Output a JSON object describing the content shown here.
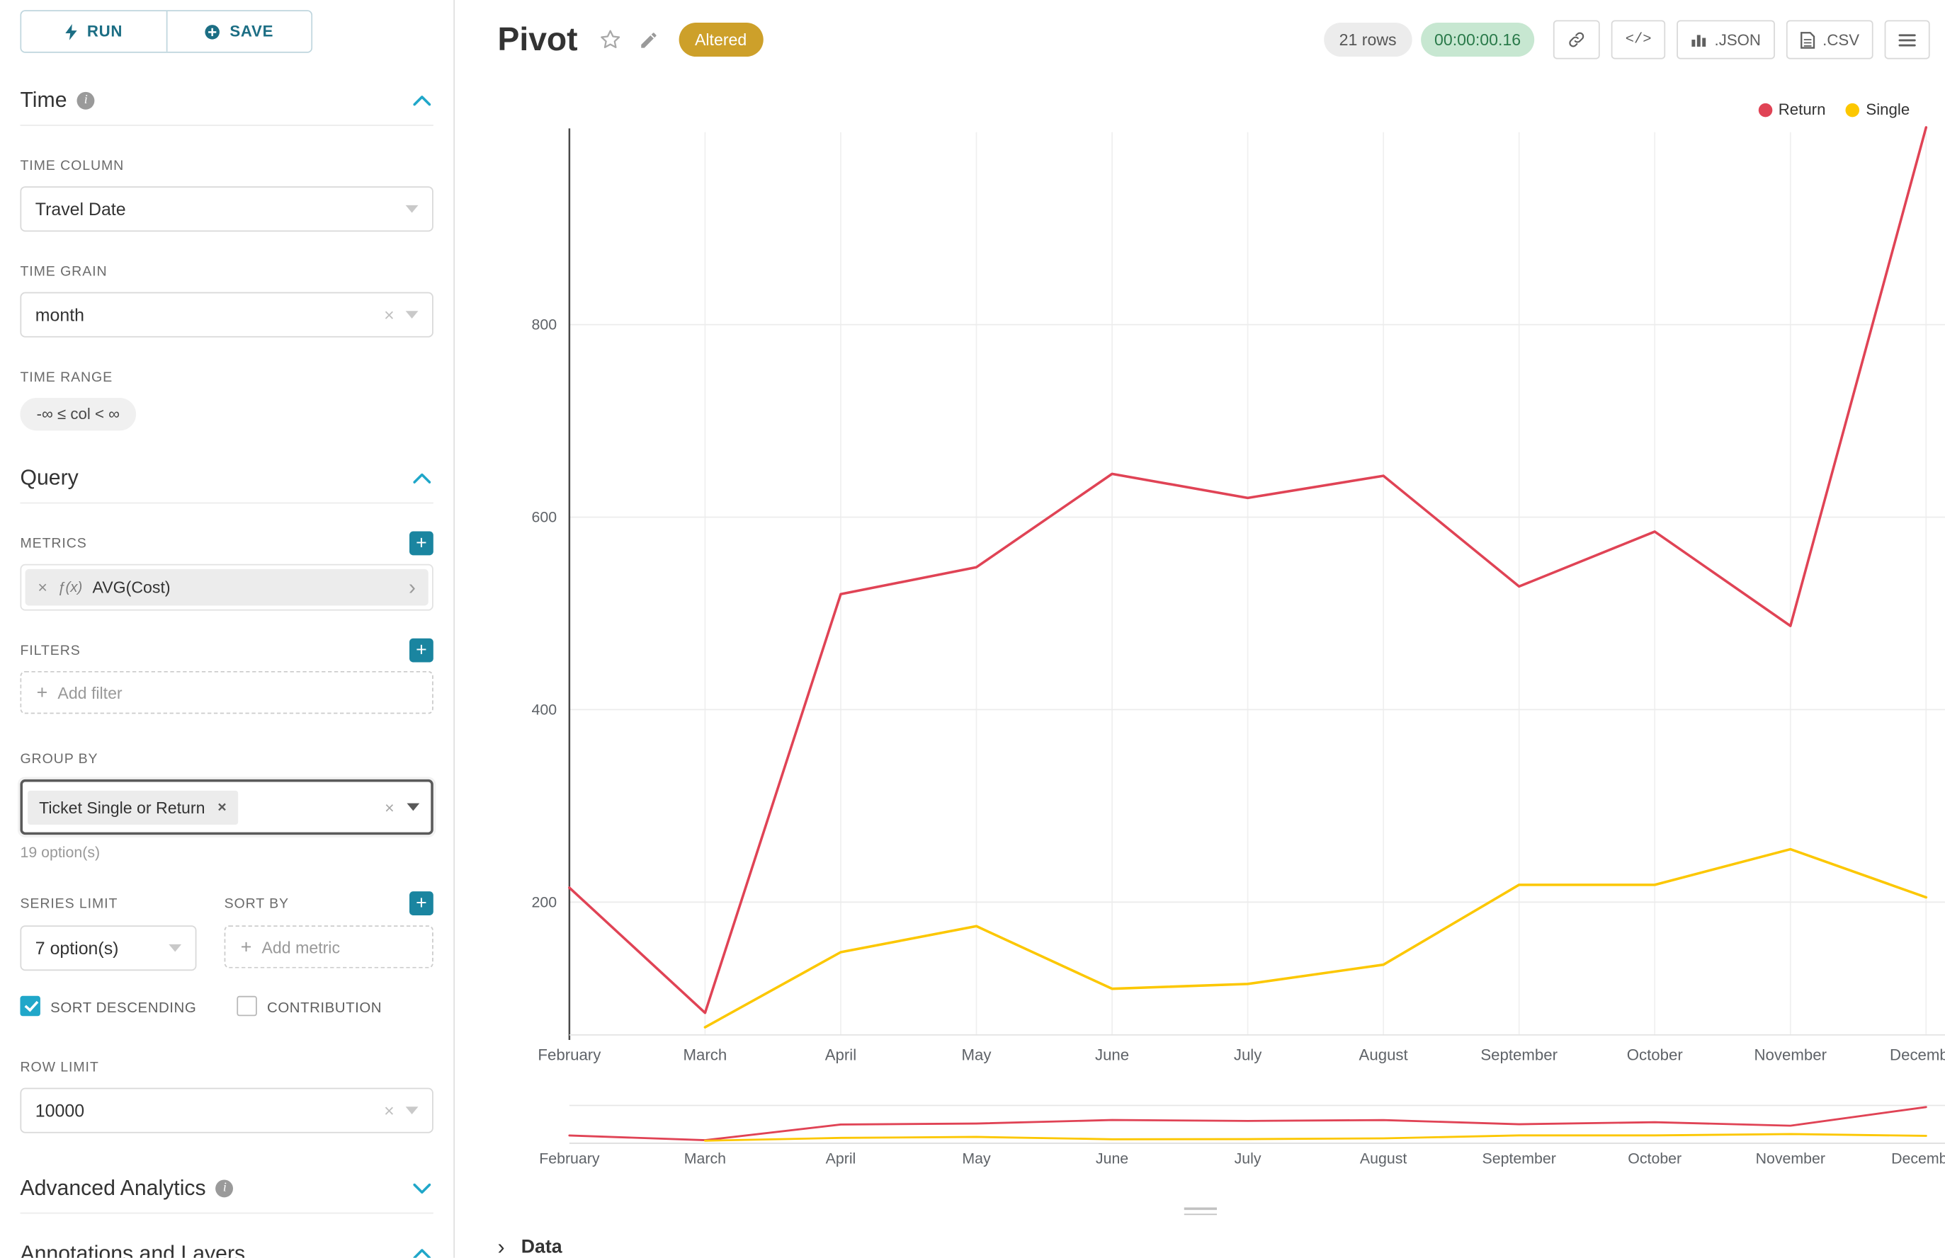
{
  "toolbar": {
    "run": "RUN",
    "save": "SAVE"
  },
  "colors": {
    "accent": "#20a7c9",
    "plus_button": "#1a85a0",
    "altered_badge": "#cda02a",
    "timer_bg": "#c7e7d1",
    "timer_text": "#2a7a4a"
  },
  "panel": {
    "time": {
      "title": "Time",
      "time_column": {
        "label": "TIME COLUMN",
        "value": "Travel Date"
      },
      "time_grain": {
        "label": "TIME GRAIN",
        "value": "month"
      },
      "time_range": {
        "label": "TIME RANGE",
        "value": "-∞ ≤ col < ∞"
      }
    },
    "query": {
      "title": "Query",
      "metrics": {
        "label": "METRICS",
        "fn": "ƒ(x)",
        "value": "AVG(Cost)"
      },
      "filters": {
        "label": "FILTERS",
        "placeholder": "Add filter"
      },
      "group_by": {
        "label": "GROUP BY",
        "chip": "Ticket Single or Return",
        "hint": "19 option(s)"
      },
      "series_limit": {
        "label": "SERIES LIMIT",
        "value": "7 option(s)"
      },
      "sort_by": {
        "label": "SORT BY",
        "placeholder": "Add metric"
      },
      "sort_descending": {
        "label": "SORT DESCENDING",
        "checked": true
      },
      "contribution": {
        "label": "CONTRIBUTION",
        "checked": false
      },
      "row_limit": {
        "label": "ROW LIMIT",
        "value": "10000"
      }
    },
    "advanced": {
      "title": "Advanced Analytics"
    },
    "annotations": {
      "title": "Annotations and Layers"
    }
  },
  "header": {
    "title": "Pivot",
    "badge": "Altered",
    "rows": "21 rows",
    "timer": "00:00:00.16",
    "buttons": {
      "code": "</>",
      "json": ".JSON",
      "csv": ".CSV"
    }
  },
  "footer": {
    "data_label": "Data"
  },
  "chart_data": {
    "type": "line",
    "title": "",
    "xlabel": "",
    "ylabel": "",
    "categories": [
      "February",
      "March",
      "April",
      "May",
      "June",
      "July",
      "August",
      "September",
      "October",
      "November",
      "December"
    ],
    "series": [
      {
        "name": "Return",
        "color": "#E04355",
        "values": [
          215,
          85,
          520,
          548,
          645,
          620,
          643,
          528,
          585,
          487,
          1005
        ]
      },
      {
        "name": "Single",
        "color": "#FCC700",
        "values": [
          null,
          70,
          148,
          175,
          110,
          115,
          135,
          218,
          218,
          255,
          205
        ]
      }
    ],
    "ylim": [
      0,
      1000
    ],
    "yticks": [
      200,
      400,
      600,
      800
    ],
    "grid": true,
    "legend_position": "top-right",
    "has_minimap_brush": true
  }
}
